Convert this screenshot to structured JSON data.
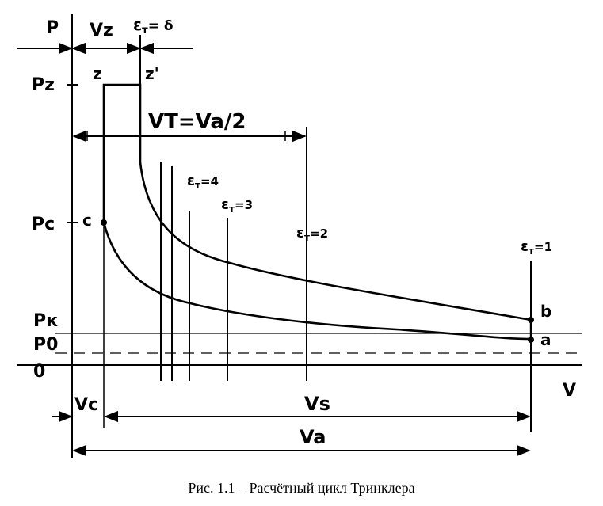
{
  "labels": {
    "p_axis": "P",
    "v_axis": "V",
    "vz": "Vz",
    "eps_delta": "ε",
    "eps_delta_sub": "т",
    "eps_delta_eq": "= δ",
    "pz": "Pz",
    "pc": "Pc",
    "pk": "Pк",
    "p0": "P0",
    "zero": "0",
    "pt_z": "z",
    "pt_z2": "z'",
    "pt_c": "c",
    "pt_b": "b",
    "pt_a": "a",
    "vt_formula": "VT=Va/2",
    "eps4": "ε",
    "eps4_sub": "т",
    "eps4_eq": "=4",
    "eps3": "ε",
    "eps3_sub": "т",
    "eps3_eq": "=3",
    "eps2": "ε",
    "eps2_sub": "т",
    "eps2_eq": "=2",
    "eps1": "ε",
    "eps1_sub": "т",
    "eps1_eq": "=1",
    "vc": "Vc",
    "vs": "Vs",
    "va": "Va"
  },
  "caption": "Рис. 1.1 – Расчётный цикл Тринклера",
  "colors": {
    "ink": "#000000",
    "background": "#ffffff"
  }
}
